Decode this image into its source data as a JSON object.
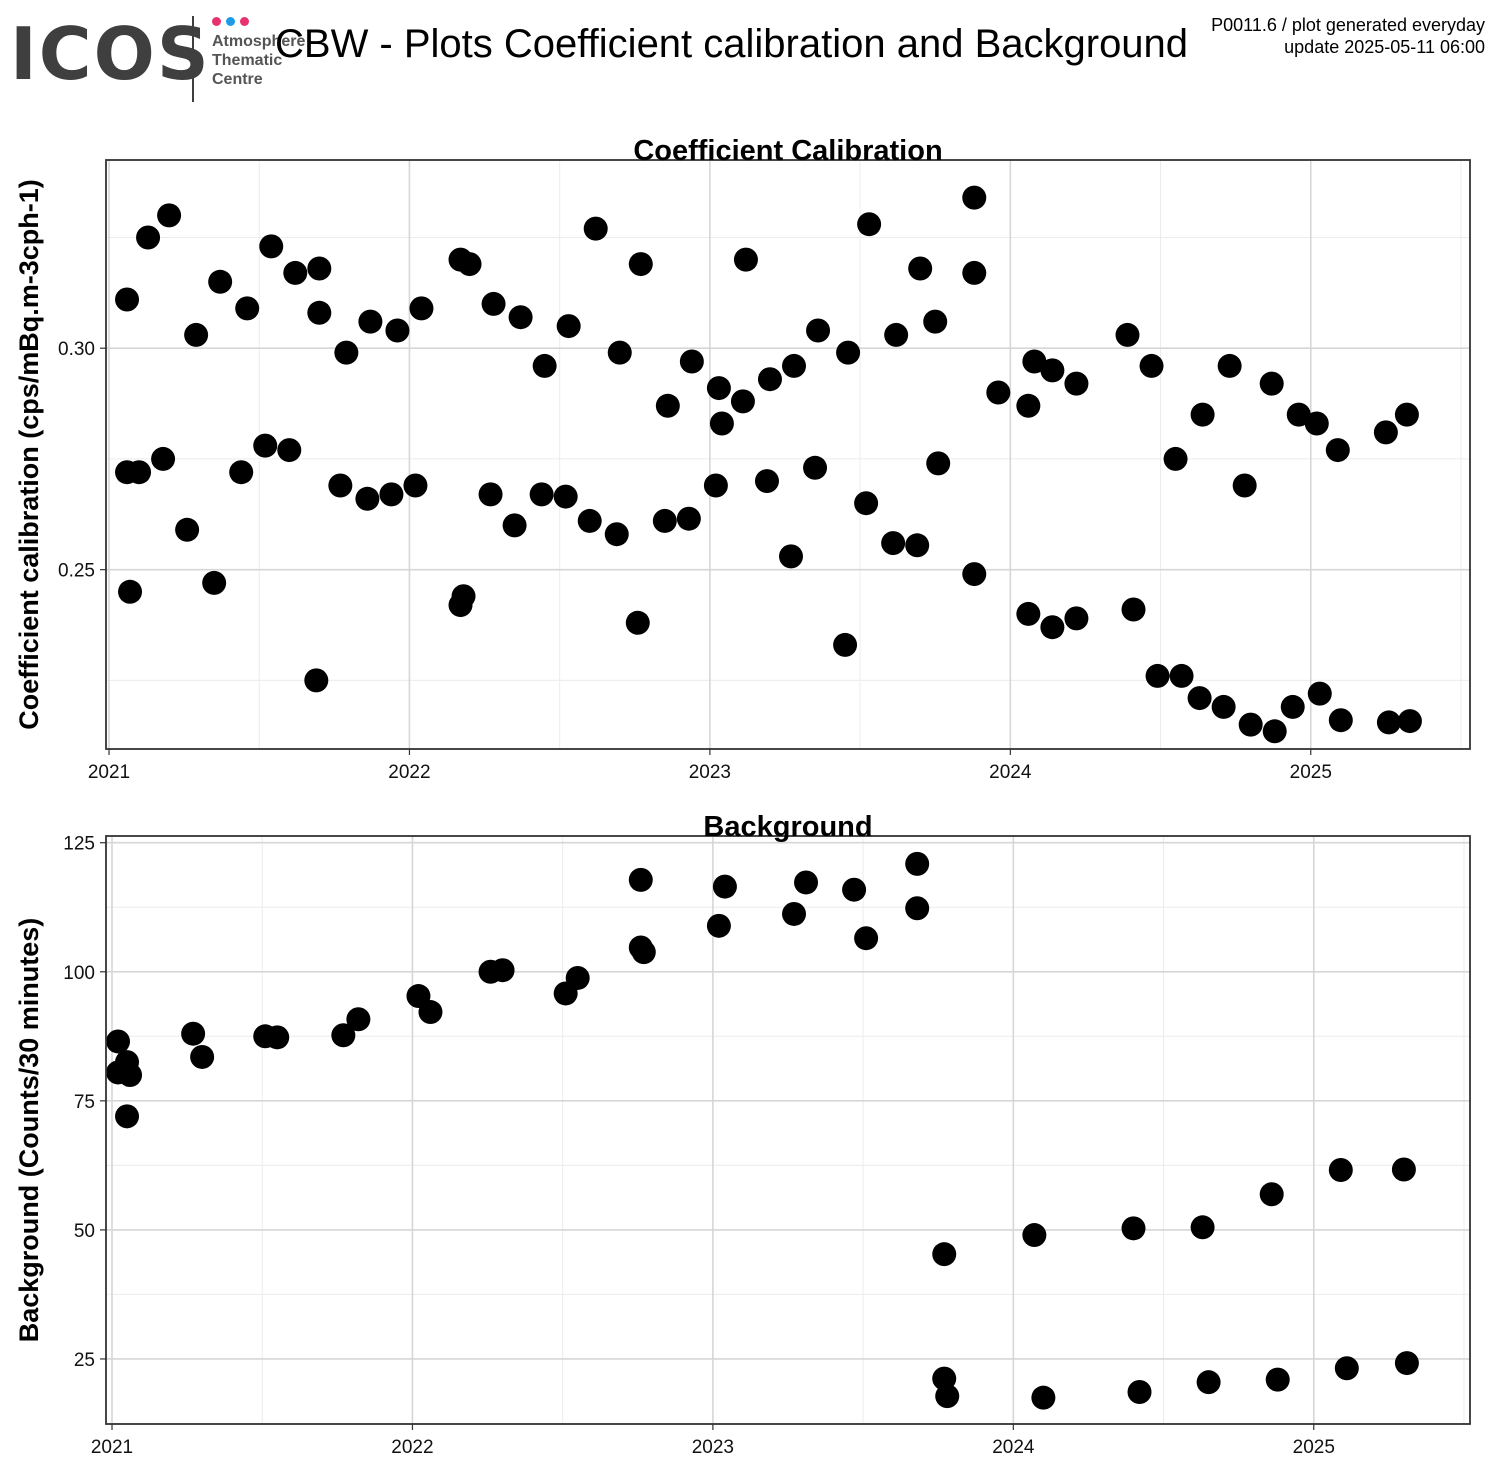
{
  "header": {
    "logo_text": "ICOS",
    "logo_subtitle": [
      "Atmosphere",
      "Thematic",
      "Centre"
    ],
    "logo_dot_colors": [
      "#e6326e",
      "#1e9be6",
      "#e6326e"
    ],
    "title": "CBW - Plots Coefficient calibration and Background",
    "info_line1": "P0011.6 / plot generated everyday",
    "info_line2": "update  2025-05-11 06:00"
  },
  "chart_data": [
    {
      "type": "scatter",
      "title": "Coefficient Calibration",
      "xlabel": "",
      "ylabel": "Coefficient calibration (cps/mBq.m-3cph-1)",
      "xlim": [
        2020.99,
        2025.53
      ],
      "ylim": [
        0.2095,
        0.3425
      ],
      "x_ticks": [
        2021,
        2022,
        2023,
        2024,
        2025
      ],
      "y_ticks": [
        0.25,
        0.3
      ],
      "y_tick_labels": [
        "0.25",
        "0.30"
      ],
      "grid": true,
      "point_color": "#000000",
      "points": [
        [
          2021.06,
          0.311
        ],
        [
          2021.06,
          0.272
        ],
        [
          2021.07,
          0.245
        ],
        [
          2021.1,
          0.272
        ],
        [
          2021.13,
          0.325
        ],
        [
          2021.18,
          0.275
        ],
        [
          2021.2,
          0.33
        ],
        [
          2021.26,
          0.259
        ],
        [
          2021.29,
          0.303
        ],
        [
          2021.35,
          0.247
        ],
        [
          2021.37,
          0.315
        ],
        [
          2021.44,
          0.272
        ],
        [
          2021.46,
          0.309
        ],
        [
          2021.52,
          0.278
        ],
        [
          2021.54,
          0.323
        ],
        [
          2021.6,
          0.277
        ],
        [
          2021.62,
          0.317
        ],
        [
          2021.69,
          0.225
        ],
        [
          2021.7,
          0.318
        ],
        [
          2021.7,
          0.308
        ],
        [
          2021.77,
          0.269
        ],
        [
          2021.79,
          0.299
        ],
        [
          2021.86,
          0.266
        ],
        [
          2021.87,
          0.306
        ],
        [
          2021.94,
          0.267
        ],
        [
          2021.96,
          0.304
        ],
        [
          2022.02,
          0.269
        ],
        [
          2022.04,
          0.309
        ],
        [
          2022.17,
          0.242
        ],
        [
          2022.17,
          0.32
        ],
        [
          2022.18,
          0.244
        ],
        [
          2022.2,
          0.319
        ],
        [
          2022.27,
          0.267
        ],
        [
          2022.28,
          0.31
        ],
        [
          2022.35,
          0.26
        ],
        [
          2022.37,
          0.307
        ],
        [
          2022.44,
          0.267
        ],
        [
          2022.45,
          0.296
        ],
        [
          2022.52,
          0.2665
        ],
        [
          2022.53,
          0.305
        ],
        [
          2022.6,
          0.261
        ],
        [
          2022.62,
          0.327
        ],
        [
          2022.69,
          0.258
        ],
        [
          2022.7,
          0.299
        ],
        [
          2022.76,
          0.238
        ],
        [
          2022.77,
          0.319
        ],
        [
          2022.85,
          0.261
        ],
        [
          2022.86,
          0.287
        ],
        [
          2022.93,
          0.2615
        ],
        [
          2022.94,
          0.297
        ],
        [
          2023.02,
          0.269
        ],
        [
          2023.03,
          0.291
        ],
        [
          2023.04,
          0.283
        ],
        [
          2023.11,
          0.288
        ],
        [
          2023.12,
          0.32
        ],
        [
          2023.19,
          0.27
        ],
        [
          2023.2,
          0.293
        ],
        [
          2023.27,
          0.253
        ],
        [
          2023.28,
          0.296
        ],
        [
          2023.35,
          0.273
        ],
        [
          2023.36,
          0.304
        ],
        [
          2023.45,
          0.233
        ],
        [
          2023.46,
          0.299
        ],
        [
          2023.52,
          0.265
        ],
        [
          2023.53,
          0.328
        ],
        [
          2023.61,
          0.256
        ],
        [
          2023.62,
          0.303
        ],
        [
          2023.69,
          0.2555
        ],
        [
          2023.7,
          0.318
        ],
        [
          2023.75,
          0.306
        ],
        [
          2023.76,
          0.274
        ],
        [
          2023.88,
          0.249
        ],
        [
          2023.88,
          0.334
        ],
        [
          2023.88,
          0.317
        ],
        [
          2023.96,
          0.29
        ],
        [
          2024.06,
          0.24
        ],
        [
          2024.06,
          0.287
        ],
        [
          2024.08,
          0.297
        ],
        [
          2024.14,
          0.237
        ],
        [
          2024.14,
          0.295
        ],
        [
          2024.22,
          0.239
        ],
        [
          2024.22,
          0.292
        ],
        [
          2024.39,
          0.303
        ],
        [
          2024.41,
          0.241
        ],
        [
          2024.47,
          0.296
        ],
        [
          2024.49,
          0.226
        ],
        [
          2024.55,
          0.275
        ],
        [
          2024.57,
          0.226
        ],
        [
          2024.63,
          0.221
        ],
        [
          2024.64,
          0.285
        ],
        [
          2024.71,
          0.219
        ],
        [
          2024.73,
          0.296
        ],
        [
          2024.78,
          0.269
        ],
        [
          2024.8,
          0.215
        ],
        [
          2024.87,
          0.292
        ],
        [
          2024.88,
          0.2135
        ],
        [
          2024.94,
          0.219
        ],
        [
          2024.96,
          0.285
        ],
        [
          2025.02,
          0.283
        ],
        [
          2025.03,
          0.222
        ],
        [
          2025.09,
          0.277
        ],
        [
          2025.1,
          0.216
        ],
        [
          2025.25,
          0.281
        ],
        [
          2025.26,
          0.2155
        ],
        [
          2025.32,
          0.285
        ],
        [
          2025.33,
          0.2158
        ]
      ]
    },
    {
      "type": "scatter",
      "title": "Background",
      "xlabel": "",
      "ylabel": "Background (Counts/30 minutes)",
      "xlim": [
        2020.98,
        2025.52
      ],
      "ylim": [
        12.4,
        126.3
      ],
      "x_ticks": [
        2021,
        2022,
        2023,
        2024,
        2025
      ],
      "y_ticks": [
        25,
        50,
        75,
        100,
        125
      ],
      "y_tick_labels": [
        "25",
        "50",
        "75",
        "100",
        "125"
      ],
      "grid": true,
      "point_color": "#000000",
      "points": [
        [
          2021.02,
          86.5
        ],
        [
          2021.02,
          80.5
        ],
        [
          2021.05,
          82.5
        ],
        [
          2021.05,
          72.0
        ],
        [
          2021.06,
          80.0
        ],
        [
          2021.27,
          88.0
        ],
        [
          2021.3,
          83.5
        ],
        [
          2021.51,
          87.5
        ],
        [
          2021.55,
          87.3
        ],
        [
          2021.77,
          87.7
        ],
        [
          2021.82,
          90.8
        ],
        [
          2022.02,
          95.3
        ],
        [
          2022.06,
          92.2
        ],
        [
          2022.26,
          100.0
        ],
        [
          2022.3,
          100.3
        ],
        [
          2022.51,
          95.8
        ],
        [
          2022.55,
          98.8
        ],
        [
          2022.76,
          104.7
        ],
        [
          2022.76,
          117.8
        ],
        [
          2022.77,
          103.8
        ],
        [
          2023.02,
          108.9
        ],
        [
          2023.04,
          116.5
        ],
        [
          2023.27,
          111.2
        ],
        [
          2023.31,
          117.3
        ],
        [
          2023.47,
          115.9
        ],
        [
          2023.51,
          106.5
        ],
        [
          2023.68,
          120.9
        ],
        [
          2023.68,
          112.3
        ],
        [
          2023.77,
          45.3
        ],
        [
          2023.77,
          21.2
        ],
        [
          2023.78,
          17.8
        ],
        [
          2024.07,
          49.0
        ],
        [
          2024.1,
          17.5
        ],
        [
          2024.4,
          50.3
        ],
        [
          2024.42,
          18.6
        ],
        [
          2024.63,
          50.5
        ],
        [
          2024.65,
          20.5
        ],
        [
          2024.86,
          56.9
        ],
        [
          2024.88,
          21.0
        ],
        [
          2025.09,
          61.6
        ],
        [
          2025.11,
          23.2
        ],
        [
          2025.3,
          61.7
        ],
        [
          2025.31,
          24.2
        ]
      ]
    }
  ]
}
